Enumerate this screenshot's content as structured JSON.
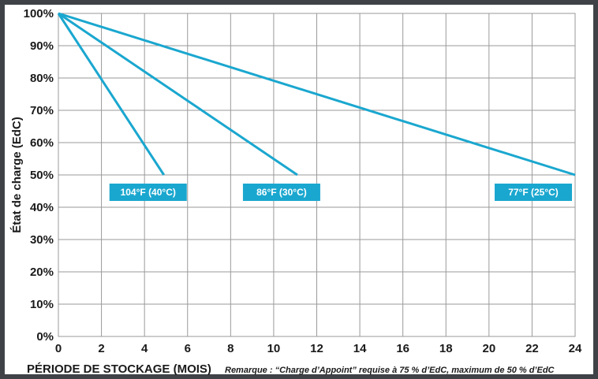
{
  "chart_data": {
    "type": "line",
    "xlabel": "PÉRIODE DE STOCKAGE (MOIS)",
    "ylabel": "État de charge (EdC)",
    "note": "Remarque : “Charge d’Appoint” requise à 75 % d’EdC, maximum de 50 % d’EdC",
    "xlim": [
      0,
      24
    ],
    "ylim": [
      0,
      100
    ],
    "x_ticks": [
      "0",
      "2",
      "4",
      "6",
      "8",
      "10",
      "12",
      "14",
      "16",
      "18",
      "20",
      "22",
      "24"
    ],
    "y_ticks": [
      "0%",
      "10%",
      "20%",
      "30%",
      "40%",
      "50%",
      "60%",
      "70%",
      "80%",
      "90%",
      "100%"
    ],
    "grid": true,
    "series": [
      {
        "name": "104°F (40°C)",
        "x": [
          0,
          4.9
        ],
        "y": [
          100,
          50
        ]
      },
      {
        "name": "86°F (30°C)",
        "x": [
          0,
          11.1
        ],
        "y": [
          100,
          50
        ]
      },
      {
        "name": "77°F (25°C)",
        "x": [
          0,
          24
        ],
        "y": [
          100,
          50
        ]
      }
    ],
    "colors": {
      "line": "#1aa7cf",
      "label_bg": "#1aa7cf",
      "grid": "#9a9a9a",
      "frame": "#3f4347"
    }
  }
}
